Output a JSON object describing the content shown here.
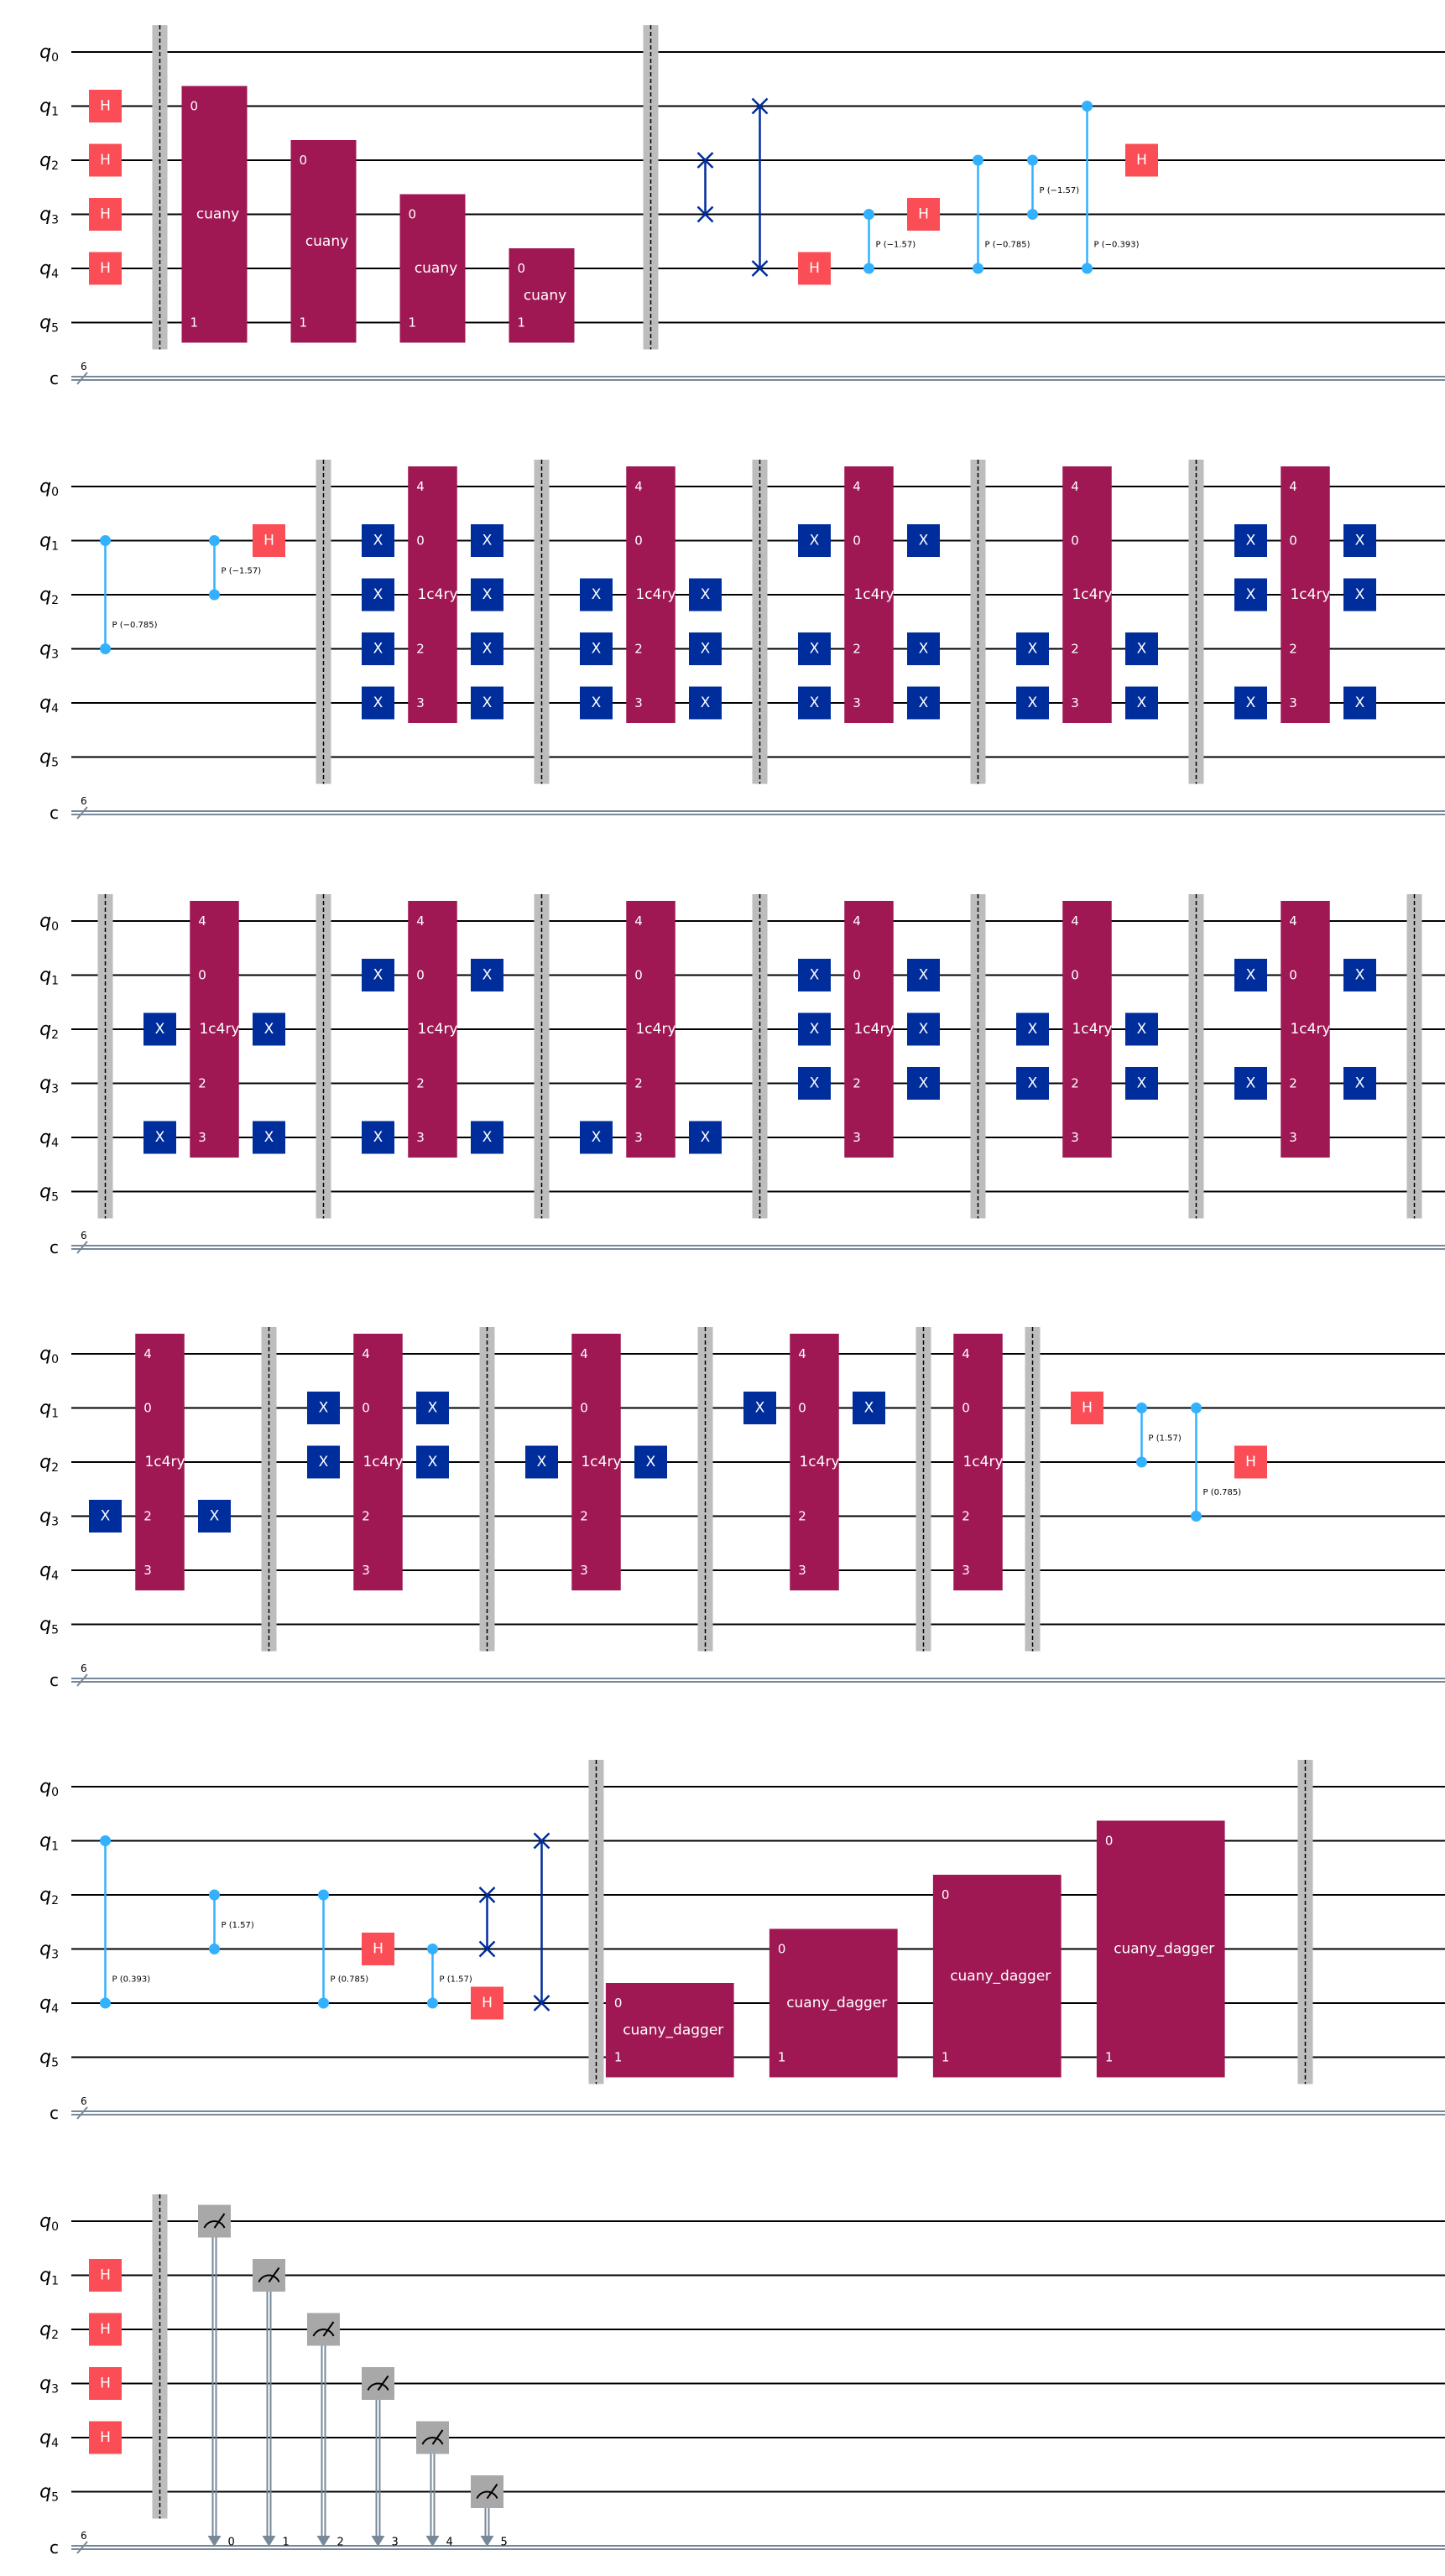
{
  "colors": {
    "wire": "#000000",
    "creg": "#778899",
    "barrier": "#bdbdbd",
    "h": "#fa4d56",
    "x": "#002d9c",
    "custom": "#9f1853",
    "phase": "#33b1ff",
    "measure": "#a8a8a8",
    "text": "#ffffff"
  },
  "circuit": {
    "qubit_labels": [
      "q0",
      "q1",
      "q2",
      "q3",
      "q4",
      "q5"
    ],
    "classical_label": "c",
    "classical_width": "6",
    "rows": [
      {
        "ops": [
          {
            "t": "h",
            "q": [
              1
            ],
            "s": 1
          },
          {
            "t": "h",
            "q": [
              2
            ],
            "s": 1
          },
          {
            "t": "h",
            "q": [
              3
            ],
            "s": 1
          },
          {
            "t": "h",
            "q": [
              4
            ],
            "s": 1
          },
          {
            "t": "barrier",
            "s": 2
          },
          {
            "t": "box",
            "q": [
              1,
              5
            ],
            "s": 3,
            "w": 1.2,
            "label": "cuany",
            "pins": [
              {
                "q": 1,
                "text": "0"
              },
              {
                "q": 5,
                "text": "1"
              }
            ]
          },
          {
            "t": "box",
            "q": [
              2,
              5
            ],
            "s": 5,
            "w": 1.2,
            "label": "cuany",
            "pins": [
              {
                "q": 2,
                "text": "0"
              },
              {
                "q": 5,
                "text": "1"
              }
            ]
          },
          {
            "t": "box",
            "q": [
              3,
              5
            ],
            "s": 7,
            "w": 1.2,
            "label": "cuany",
            "pins": [
              {
                "q": 3,
                "text": "0"
              },
              {
                "q": 5,
                "text": "1"
              }
            ]
          },
          {
            "t": "box",
            "q": [
              4,
              5
            ],
            "s": 9,
            "w": 1.2,
            "label": "cuany",
            "pins": [
              {
                "q": 4,
                "text": "0"
              },
              {
                "q": 5,
                "text": "1"
              }
            ]
          },
          {
            "t": "barrier",
            "s": 11
          },
          {
            "t": "swap",
            "q": [
              2,
              3
            ],
            "s": 12
          },
          {
            "t": "swap",
            "q": [
              1,
              4
            ],
            "s": 13
          },
          {
            "t": "h",
            "q": [
              4
            ],
            "s": 14
          },
          {
            "t": "cp",
            "q": [
              3,
              4
            ],
            "s": 15,
            "label": "P (−1.57)"
          },
          {
            "t": "h",
            "q": [
              3
            ],
            "s": 16
          },
          {
            "t": "cp",
            "q": [
              2,
              4
            ],
            "s": 17,
            "label": "P (−0.785)"
          },
          {
            "t": "cp",
            "q": [
              2,
              3
            ],
            "s": 18,
            "label": "P (−1.57)"
          },
          {
            "t": "cp",
            "q": [
              1,
              4
            ],
            "s": 19,
            "label": "P (−0.393)"
          },
          {
            "t": "h",
            "q": [
              2
            ],
            "s": 20
          }
        ]
      },
      {
        "ops": [
          {
            "t": "cp",
            "q": [
              1,
              3
            ],
            "s": 1,
            "label": "P (−0.785)"
          },
          {
            "t": "cp",
            "q": [
              1,
              2
            ],
            "s": 3,
            "label": "P (−1.57)"
          },
          {
            "t": "h",
            "q": [
              1
            ],
            "s": 4
          },
          {
            "t": "barrier",
            "s": 5
          },
          {
            "t": "x",
            "q": [
              1,
              2,
              3,
              4
            ],
            "s": 6
          },
          {
            "t": "c4",
            "s": 7
          },
          {
            "t": "x",
            "q": [
              1,
              2,
              3,
              4
            ],
            "s": 8
          },
          {
            "t": "barrier",
            "s": 9
          },
          {
            "t": "x",
            "q": [
              2,
              3,
              4
            ],
            "s": 10
          },
          {
            "t": "c4",
            "s": 11
          },
          {
            "t": "x",
            "q": [
              2,
              3,
              4
            ],
            "s": 12
          },
          {
            "t": "barrier",
            "s": 13
          },
          {
            "t": "x",
            "q": [
              1,
              3,
              4
            ],
            "s": 14
          },
          {
            "t": "c4",
            "s": 15
          },
          {
            "t": "x",
            "q": [
              1,
              3,
              4
            ],
            "s": 16
          },
          {
            "t": "barrier",
            "s": 17
          },
          {
            "t": "x",
            "q": [
              3,
              4
            ],
            "s": 18
          },
          {
            "t": "c4",
            "s": 19
          },
          {
            "t": "x",
            "q": [
              3,
              4
            ],
            "s": 20
          },
          {
            "t": "barrier",
            "s": 21
          },
          {
            "t": "x",
            "q": [
              1,
              2,
              4
            ],
            "s": 22
          },
          {
            "t": "c4",
            "s": 23
          },
          {
            "t": "x",
            "q": [
              1,
              2,
              4
            ],
            "s": 24
          }
        ]
      },
      {
        "ops": [
          {
            "t": "barrier",
            "s": 1
          },
          {
            "t": "x",
            "q": [
              2,
              4
            ],
            "s": 2
          },
          {
            "t": "c4",
            "s": 3
          },
          {
            "t": "x",
            "q": [
              2,
              4
            ],
            "s": 4
          },
          {
            "t": "barrier",
            "s": 5
          },
          {
            "t": "x",
            "q": [
              1,
              4
            ],
            "s": 6
          },
          {
            "t": "c4",
            "s": 7
          },
          {
            "t": "x",
            "q": [
              1,
              4
            ],
            "s": 8
          },
          {
            "t": "barrier",
            "s": 9
          },
          {
            "t": "x",
            "q": [
              4
            ],
            "s": 10
          },
          {
            "t": "c4",
            "s": 11
          },
          {
            "t": "x",
            "q": [
              4
            ],
            "s": 12
          },
          {
            "t": "barrier",
            "s": 13
          },
          {
            "t": "x",
            "q": [
              1,
              2,
              3
            ],
            "s": 14
          },
          {
            "t": "c4",
            "s": 15
          },
          {
            "t": "x",
            "q": [
              1,
              2,
              3
            ],
            "s": 16
          },
          {
            "t": "barrier",
            "s": 17
          },
          {
            "t": "x",
            "q": [
              2,
              3
            ],
            "s": 18
          },
          {
            "t": "c4",
            "s": 19
          },
          {
            "t": "x",
            "q": [
              2,
              3
            ],
            "s": 20
          },
          {
            "t": "barrier",
            "s": 21
          },
          {
            "t": "x",
            "q": [
              1,
              3
            ],
            "s": 22
          },
          {
            "t": "c4",
            "s": 23
          },
          {
            "t": "x",
            "q": [
              1,
              3
            ],
            "s": 24
          },
          {
            "t": "barrier",
            "s": 25
          }
        ]
      },
      {
        "ops": [
          {
            "t": "x",
            "q": [
              3
            ],
            "s": 1
          },
          {
            "t": "c4",
            "s": 2
          },
          {
            "t": "x",
            "q": [
              3
            ],
            "s": 3
          },
          {
            "t": "barrier",
            "s": 4
          },
          {
            "t": "x",
            "q": [
              1,
              2
            ],
            "s": 5
          },
          {
            "t": "c4",
            "s": 6
          },
          {
            "t": "x",
            "q": [
              1,
              2
            ],
            "s": 7
          },
          {
            "t": "barrier",
            "s": 8
          },
          {
            "t": "x",
            "q": [
              2
            ],
            "s": 9
          },
          {
            "t": "c4",
            "s": 10
          },
          {
            "t": "x",
            "q": [
              2
            ],
            "s": 11
          },
          {
            "t": "barrier",
            "s": 12
          },
          {
            "t": "x",
            "q": [
              1
            ],
            "s": 13
          },
          {
            "t": "c4",
            "s": 14
          },
          {
            "t": "x",
            "q": [
              1
            ],
            "s": 15
          },
          {
            "t": "barrier",
            "s": 16
          },
          {
            "t": "c4",
            "s": 17
          },
          {
            "t": "barrier",
            "s": 18
          },
          {
            "t": "h",
            "q": [
              1
            ],
            "s": 19
          },
          {
            "t": "cp",
            "q": [
              1,
              2
            ],
            "s": 20,
            "label": "P (1.57)"
          },
          {
            "t": "cp",
            "q": [
              1,
              3
            ],
            "s": 21,
            "label": "P (0.785)"
          },
          {
            "t": "h",
            "q": [
              2
            ],
            "s": 22
          }
        ]
      },
      {
        "ops": [
          {
            "t": "cp",
            "q": [
              1,
              4
            ],
            "s": 1,
            "label": "P (0.393)"
          },
          {
            "t": "cp",
            "q": [
              2,
              3
            ],
            "s": 3,
            "label": "P (1.57)"
          },
          {
            "t": "cp",
            "q": [
              2,
              4
            ],
            "s": 5,
            "label": "P (0.785)"
          },
          {
            "t": "h",
            "q": [
              3
            ],
            "s": 6
          },
          {
            "t": "cp",
            "q": [
              3,
              4
            ],
            "s": 7,
            "label": "P (1.57)"
          },
          {
            "t": "h",
            "q": [
              4
            ],
            "s": 8
          },
          {
            "t": "swap",
            "q": [
              2,
              3
            ],
            "s": 8
          },
          {
            "t": "swap",
            "q": [
              1,
              4
            ],
            "s": 9
          },
          {
            "t": "barrier",
            "s": 10
          },
          {
            "t": "box",
            "q": [
              4,
              5
            ],
            "s": 11.35,
            "w": 2.35,
            "label": "cuany_dagger",
            "pins": [
              {
                "q": 4,
                "text": "0"
              },
              {
                "q": 5,
                "text": "1"
              }
            ]
          },
          {
            "t": "box",
            "q": [
              3,
              5
            ],
            "s": 14.35,
            "w": 2.35,
            "label": "cuany_dagger",
            "pins": [
              {
                "q": 3,
                "text": "0"
              },
              {
                "q": 5,
                "text": "1"
              }
            ]
          },
          {
            "t": "box",
            "q": [
              2,
              5
            ],
            "s": 17.35,
            "w": 2.35,
            "label": "cuany_dagger",
            "pins": [
              {
                "q": 2,
                "text": "0"
              },
              {
                "q": 5,
                "text": "1"
              }
            ]
          },
          {
            "t": "box",
            "q": [
              1,
              5
            ],
            "s": 20.35,
            "w": 2.35,
            "label": "cuany_dagger",
            "pins": [
              {
                "q": 1,
                "text": "0"
              },
              {
                "q": 5,
                "text": "1"
              }
            ]
          },
          {
            "t": "barrier",
            "s": 23
          }
        ]
      },
      {
        "ops": [
          {
            "t": "h",
            "q": [
              1
            ],
            "s": 1
          },
          {
            "t": "h",
            "q": [
              2
            ],
            "s": 1
          },
          {
            "t": "h",
            "q": [
              3
            ],
            "s": 1
          },
          {
            "t": "h",
            "q": [
              4
            ],
            "s": 1
          },
          {
            "t": "barrier",
            "s": 2
          },
          {
            "t": "measure",
            "q": 0,
            "c": "0",
            "s": 3
          },
          {
            "t": "measure",
            "q": 1,
            "c": "1",
            "s": 4
          },
          {
            "t": "measure",
            "q": 2,
            "c": "2",
            "s": 5
          },
          {
            "t": "measure",
            "q": 3,
            "c": "3",
            "s": 6
          },
          {
            "t": "measure",
            "q": 4,
            "c": "4",
            "s": 7
          },
          {
            "t": "measure",
            "q": 5,
            "c": "5",
            "s": 8
          }
        ]
      }
    ],
    "gate_text": {
      "h": "H",
      "x": "X",
      "c4": "1c4ry",
      "c4_pins": [
        {
          "q": 0,
          "text": "4"
        },
        {
          "q": 1,
          "text": "0"
        },
        {
          "q": 3,
          "text": "2"
        },
        {
          "q": 4,
          "text": "3"
        }
      ]
    }
  }
}
